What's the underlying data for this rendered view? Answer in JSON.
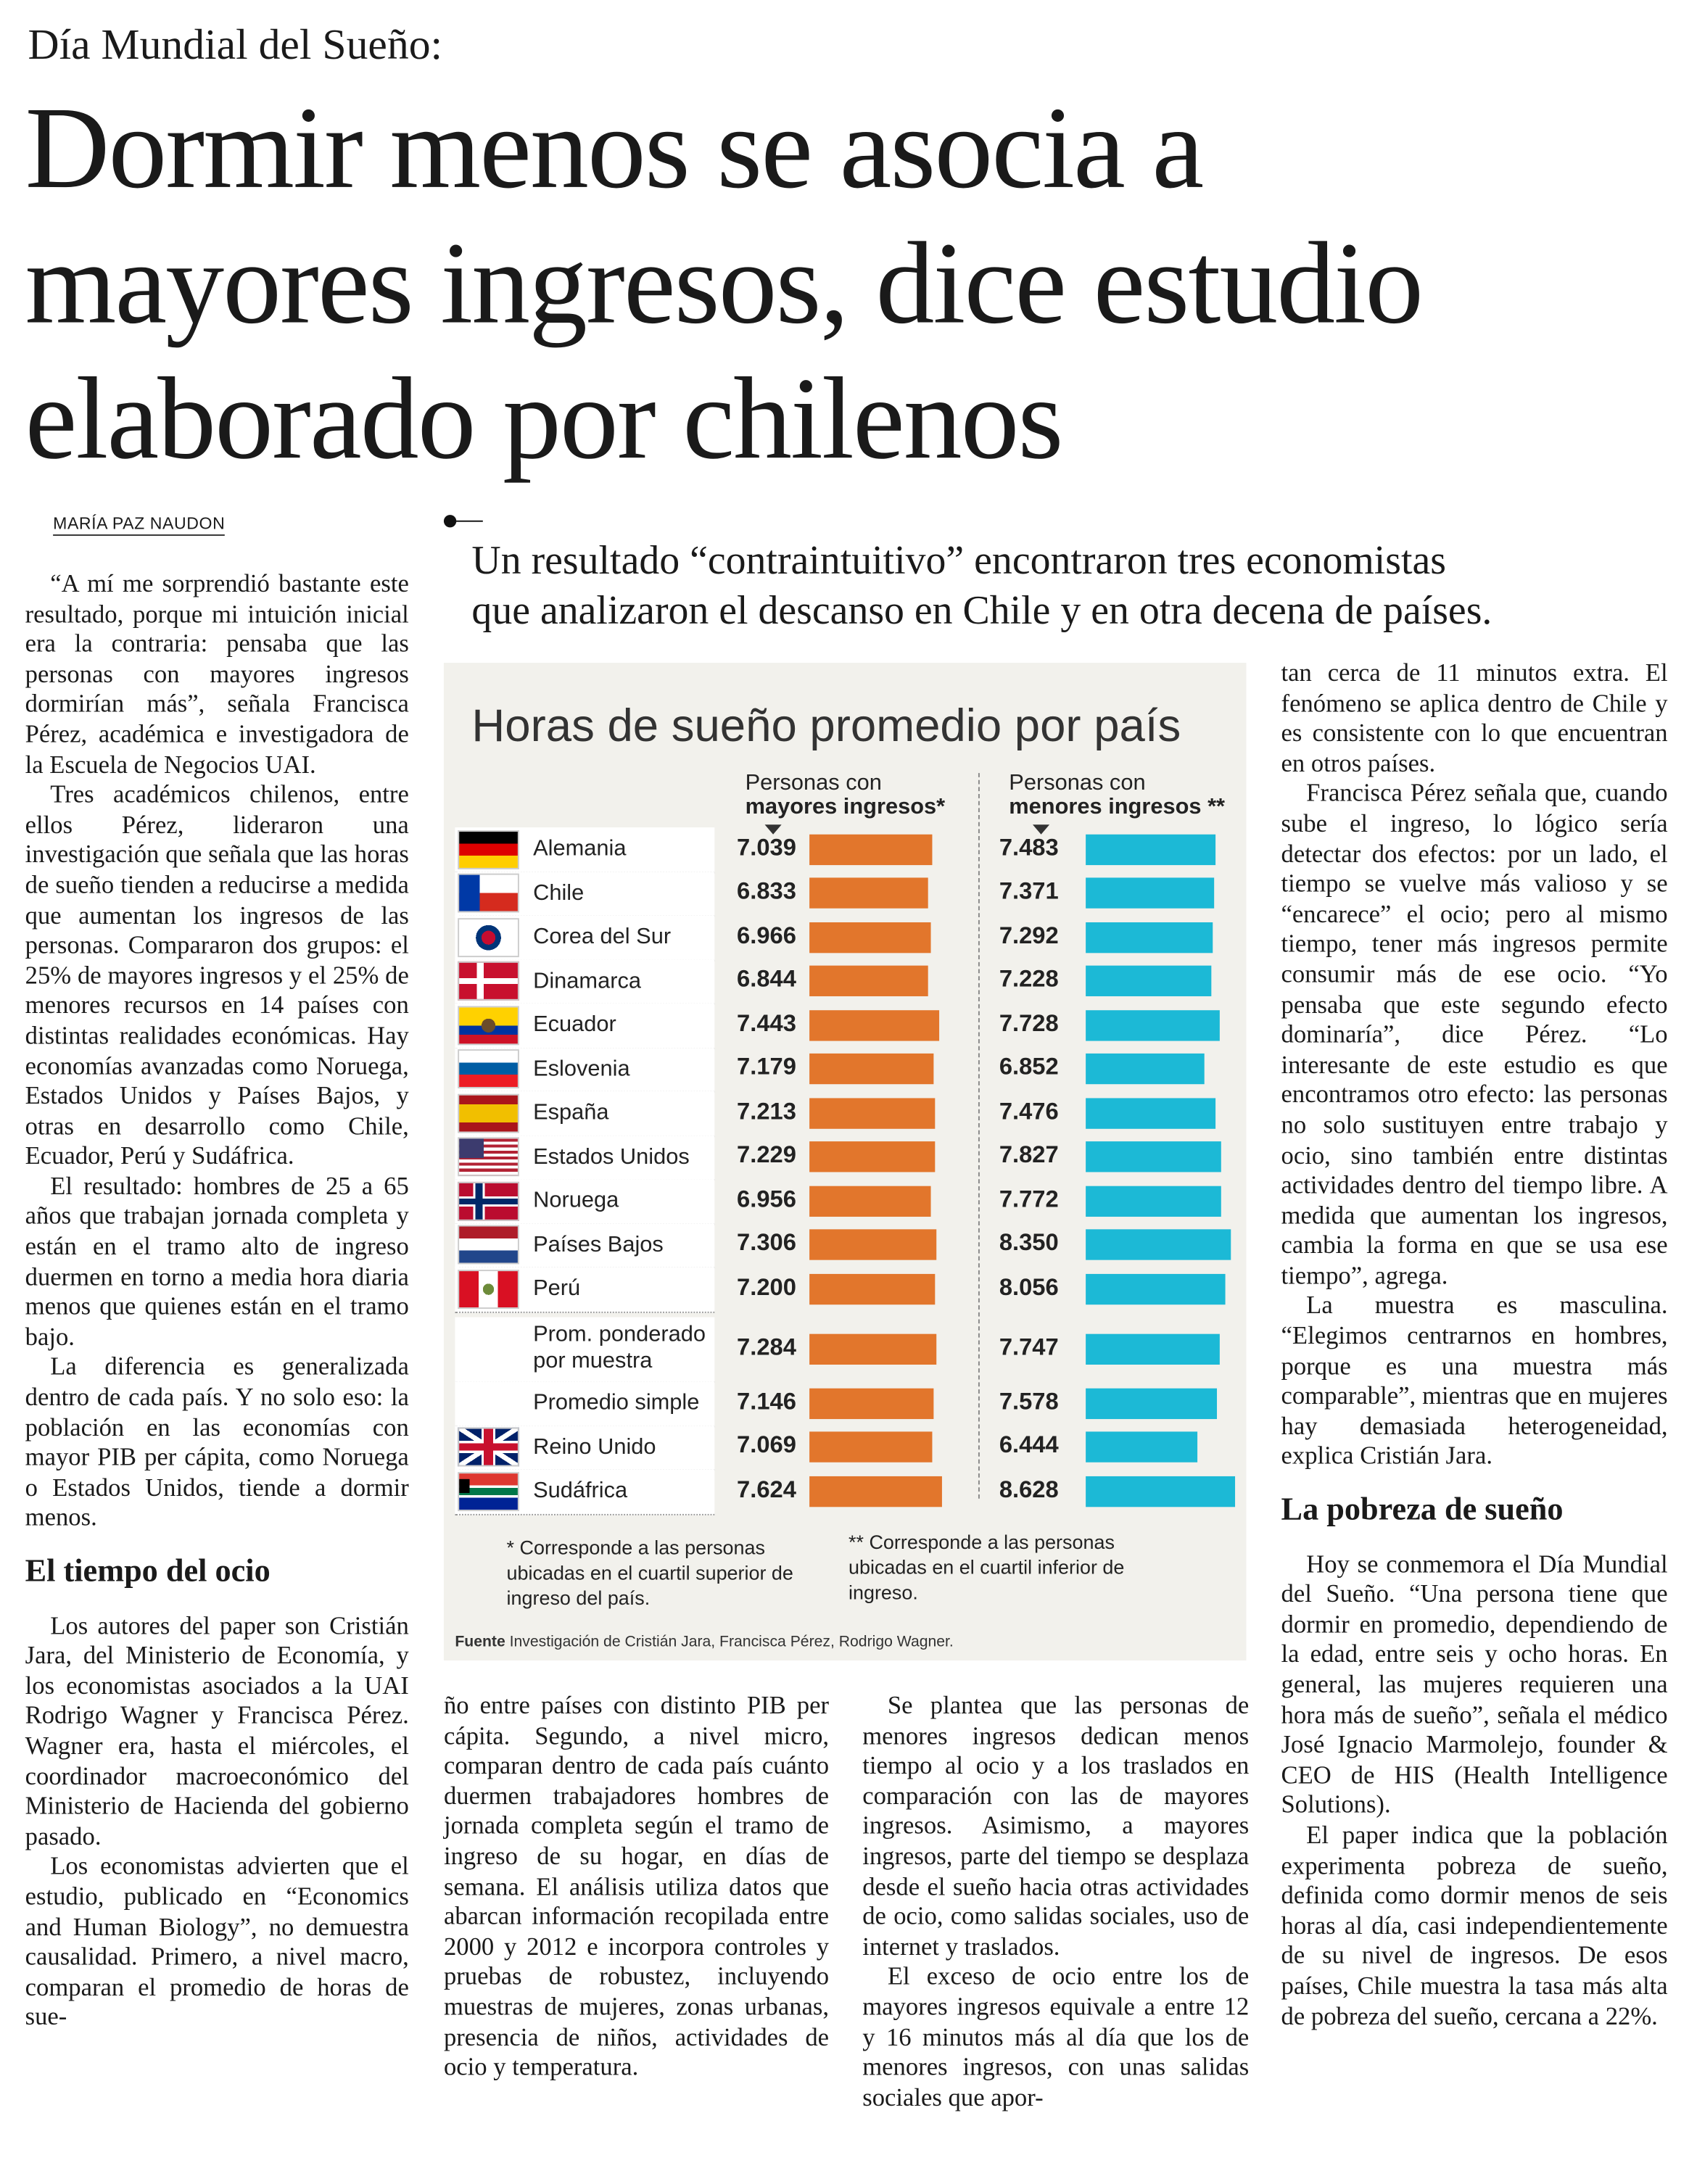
{
  "header": {
    "kicker": "Día Mundial del Sueño:",
    "headline": [
      "Dormir menos se asocia a",
      "mayores ingresos, dice estudio",
      "elaborado por chilenos"
    ],
    "byline": "MARÍA PAZ NAUDON",
    "standfirst": [
      "Un resultado “contraintuitivo” encontraron tres economistas",
      "que analizaron el descanso en Chile y en otra decena de países."
    ]
  },
  "columns": [
    [
      {
        "p": "“A mí me sorprendió bastante este resultado, porque mi intuición inicial era la contraria: pensaba que las personas con mayores ingresos dormirían más”, señala Francisca Pérez, académica e investigadora de la Escuela de Negocios UAI."
      },
      {
        "p": "Tres académicos chilenos, entre ellos Pérez, lideraron una investigación que señala que las horas de sueño tienden a reducirse a medida que aumentan los ingresos de las personas. Compararon dos grupos: el 25% de mayores ingresos y el 25% de menores recursos en 14 países con distintas realidades económicas. Hay economías avanzadas como Noruega, Estados Unidos y Países Bajos, y otras en desarrollo como Chile, Ecuador, Perú y Sudáfrica."
      },
      {
        "p": "El resultado: hombres de 25 a 65 años que trabajan jornada completa y están en el tramo alto de ingreso duermen en torno a media hora diaria menos que quienes están en el tramo bajo."
      },
      {
        "p": "La diferencia es generalizada dentro de cada país. Y no solo eso: la población en las economías con mayor PIB per cápita, como Noruega o Estados Unidos, tiende a dormir menos."
      },
      {
        "h": "El tiempo del ocio"
      },
      {
        "p": "Los autores del paper son Cristián Jara, del Ministerio de Economía, y los economistas asociados a la UAI Rodrigo Wagner y Francisca Pérez. Wagner era, hasta el miércoles, el coordinador macroeconómico del Ministerio de Hacienda del gobierno pasado."
      },
      {
        "p": "Los economistas advierten que el estudio, publicado en “Economics and Human Biology”, no demuestra causalidad. Primero, a nivel macro, comparan el promedio de horas de sue-"
      }
    ],
    [
      {
        "cont": "ño entre países con distinto PIB per cápita. Segundo, a nivel micro, comparan dentro de cada país cuánto duermen trabajadores hombres de jornada completa según el tramo de ingreso de su hogar, en días de semana. El análisis utiliza datos que abarcan información recopilada entre 2000 y 2012 e incorpora controles y pruebas de robustez, incluyendo muestras de mujeres, zonas urbanas, presencia de niños, actividades de ocio y temperatura."
      }
    ],
    [
      {
        "p": "Se plantea que las personas de menores ingresos dedican menos tiempo al ocio y a los traslados en comparación con las de mayores ingresos. Asimismo, a mayores ingresos, parte del tiempo se desplaza desde el sueño hacia otras actividades de ocio, como salidas sociales, uso de internet y traslados."
      },
      {
        "p": "El exceso de ocio entre los de mayores ingresos equivale a entre 12 y 16 minutos más al día que los de menores ingresos, con unas salidas sociales que apor-"
      }
    ],
    [
      {
        "cont": "tan cerca de 11 minutos extra. El fenómeno se aplica dentro de Chile y es consistente con lo que encuentran en otros países."
      },
      {
        "p": "Francisca Pérez señala que, cuando sube el ingreso, lo lógico sería detectar dos efectos: por un lado, el tiempo se vuelve más valioso y se “encarece” el ocio; pero al mismo tiempo, tener más ingresos permite consumir más de ese ocio. “Yo pensaba que este segundo efecto dominaría”, dice Pérez. “Lo interesante de este estudio es que encontramos otro efecto: las personas no solo sustituyen entre trabajo y ocio, sino también entre distintas actividades dentro del tiempo libre. A medida que aumentan los ingresos, cambia la forma en que se usa ese tiempo”, agrega."
      },
      {
        "p": "La muestra es masculina. “Elegimos centrarnos en hombres, porque es una muestra más comparable”, mientras que en mujeres hay demasiada heterogeneidad, explica Cristián Jara."
      },
      {
        "h": "La pobreza de sueño"
      },
      {
        "p": "Hoy se conmemora el Día Mundial del Sueño. “Una persona tiene que dormir en promedio, dependiendo de la edad, entre seis y ocho horas. En general, las mujeres requieren una hora más de sueño”, señala el médico José Ignacio Marmolejo, founder & CEO de HIS (Health Intelligence Solutions)."
      },
      {
        "p": "El paper indica que la población experimenta pobreza de sueño, definida como dormir menos de seis horas al día, casi independientemente de su nivel de ingresos. De esos países, Chile muestra la tasa más alta de pobreza del sueño, cercana a 22%."
      }
    ]
  ],
  "chart": {
    "type": "bar",
    "title": "Horas de sueño promedio por país",
    "categories": [
      "Alemania",
      "Chile",
      "Corea del Sur",
      "Dinamarca",
      "Ecuador",
      "Eslovenia",
      "España",
      "Estados Unidos",
      "Noruega",
      "Países Bajos",
      "Perú",
      "Prom. ponderado por muestra",
      "Promedio simple",
      "Reino Unido",
      "Sudáfrica"
    ],
    "series": [
      {
        "name": [
          "Personas con",
          "mayores ingresos*"
        ],
        "color": "#e2762c",
        "values": [
          7.039,
          6.833,
          6.966,
          6.844,
          7.443,
          7.179,
          7.213,
          7.229,
          6.956,
          7.306,
          7.2,
          7.284,
          7.146,
          7.069,
          7.624
        ],
        "value_labels": [
          "7.039",
          "6.833",
          "6.966",
          "6.844",
          "7.443",
          "7.179",
          "7.213",
          "7.229",
          "6.956",
          "7.306",
          "7.200",
          "7.284",
          "7.146",
          "7.069",
          "7.624"
        ]
      },
      {
        "name": [
          "Personas con",
          "menores ingresos **"
        ],
        "color": "#1cb9d6",
        "values": [
          7.483,
          7.371,
          7.292,
          7.228,
          7.728,
          6.852,
          7.476,
          7.827,
          7.772,
          8.35,
          8.056,
          7.747,
          7.578,
          6.444,
          8.628
        ],
        "value_labels": [
          "7.483",
          "7.371",
          "7.292",
          "7.228",
          "7.728",
          "6.852",
          "7.476",
          "7.827",
          "7.772",
          "8.350",
          "8.056",
          "7.747",
          "7.578",
          "6.444",
          "8.628"
        ]
      }
    ],
    "xlim": [
      0,
      9
    ],
    "notes": [
      "* Corresponde a las personas ubicadas en el cuartil superior de ingreso del país.",
      "** Corresponde a las personas ubicadas en el cuartil inferior de ingreso."
    ],
    "source": {
      "label": "Fuente",
      "text": "Investigación de Cristián Jara, Francisca Pérez, Rodrigo Wagner."
    }
  }
}
